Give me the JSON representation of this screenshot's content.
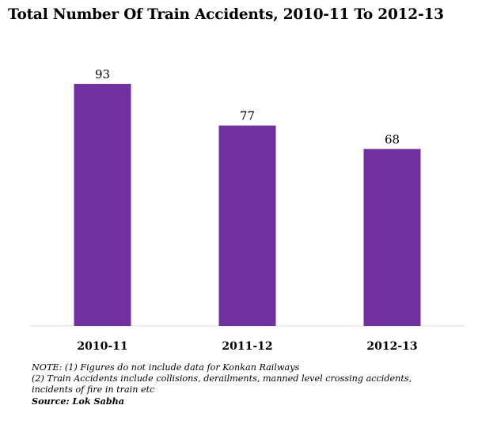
{
  "chart_data": {
    "type": "bar",
    "title": "Total Number Of Train Accidents, 2010-11 To 2012-13",
    "categories": [
      "2010-11",
      "2011-12",
      "2012-13"
    ],
    "values": [
      93,
      77,
      68
    ],
    "data_labels": [
      "93",
      "77",
      "68"
    ],
    "ylim": [
      0,
      100
    ],
    "grid": false,
    "legend": "none",
    "bar_color": "#7030a0",
    "xlabel": "",
    "ylabel": ""
  },
  "notes": {
    "line1": "NOTE:  (1) Figures do not include data for Konkan Railways",
    "line2": "(2) Train Accidents include collisions, derailments, manned level crossing accidents,",
    "line3": "incidents of fire in train etc",
    "source": "Source: Lok Sabha"
  }
}
